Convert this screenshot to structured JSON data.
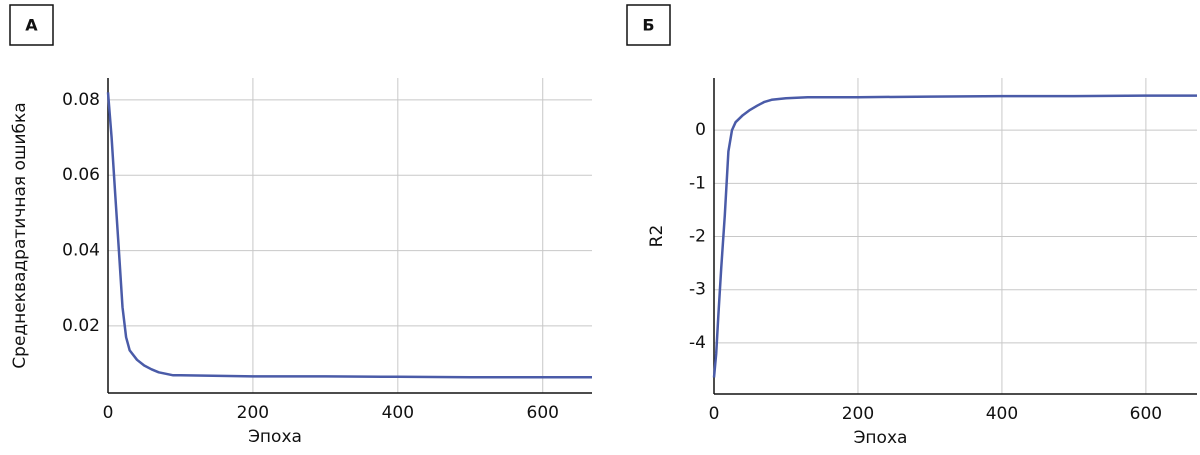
{
  "chart_data": [
    {
      "type": "line",
      "panel_label": "А",
      "x_label": "Эпоха",
      "y_label": "Среднеквадратичная ошибка",
      "x": [
        0,
        5,
        10,
        15,
        20,
        25,
        30,
        40,
        50,
        60,
        70,
        80,
        90,
        100,
        200,
        300,
        400,
        500,
        600,
        668
      ],
      "values": [
        0.082,
        0.07,
        0.055,
        0.04,
        0.025,
        0.017,
        0.0135,
        0.011,
        0.0095,
        0.0085,
        0.0077,
        0.0073,
        0.0069,
        0.0069,
        0.0066,
        0.0066,
        0.0065,
        0.0064,
        0.0064,
        0.0064
      ],
      "color": "#4a5ba8",
      "xlim": [
        0,
        668
      ],
      "xticks": [
        0,
        200,
        400,
        600
      ],
      "ylim": [
        0.0022,
        0.0858
      ],
      "yticks": [
        0.02,
        0.04,
        0.06,
        0.08
      ],
      "grid": true
    },
    {
      "type": "line",
      "panel_label": "Б",
      "x_label": "Эпоха",
      "y_label": "R2",
      "x": [
        0,
        3,
        6,
        10,
        15,
        20,
        25,
        30,
        40,
        50,
        60,
        70,
        80,
        100,
        130,
        200,
        300,
        400,
        500,
        600,
        671
      ],
      "values": [
        -4.65,
        -4.2,
        -3.5,
        -2.6,
        -1.6,
        -0.4,
        0.0,
        0.15,
        0.28,
        0.38,
        0.46,
        0.53,
        0.57,
        0.6,
        0.62,
        0.62,
        0.63,
        0.64,
        0.64,
        0.65,
        0.65
      ],
      "color": "#4a5ba8",
      "xlim": [
        0,
        671
      ],
      "xticks": [
        0,
        200,
        400,
        600
      ],
      "ylim": [
        -4.96,
        0.98
      ],
      "yticks": [
        0,
        -1,
        -2,
        -3,
        -4
      ],
      "grid": true
    }
  ]
}
